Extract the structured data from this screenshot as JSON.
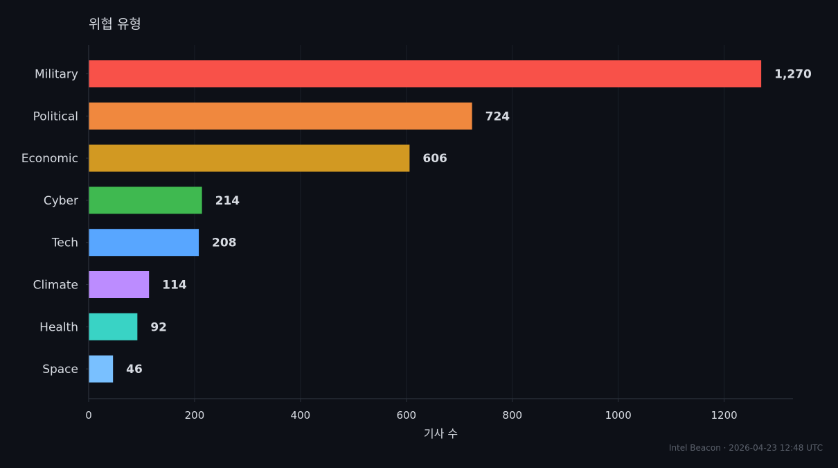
{
  "chart_data": {
    "type": "bar",
    "orientation": "horizontal",
    "title": "위협 유형",
    "xlabel": "기사 수",
    "ylabel": "",
    "xlim": [
      0,
      1330
    ],
    "xticks": [
      0,
      200,
      400,
      600,
      800,
      1000,
      1200
    ],
    "categories": [
      "Military",
      "Political",
      "Economic",
      "Cyber",
      "Tech",
      "Climate",
      "Health",
      "Space"
    ],
    "values": [
      1270,
      724,
      606,
      214,
      208,
      114,
      92,
      46
    ],
    "value_labels": [
      "1,270",
      "724",
      "606",
      "214",
      "208",
      "114",
      "92",
      "46"
    ],
    "colors": [
      "#f85149",
      "#f0883e",
      "#d29922",
      "#3fb950",
      "#58a6ff",
      "#bc8cff",
      "#39d3c5",
      "#79c0ff"
    ],
    "grid": true,
    "legend": "none"
  },
  "footer": {
    "source": "Intel Beacon · 2026-04-23 12:48 UTC"
  },
  "theme": {
    "background": "#0d1017",
    "text": "#d7dbe2",
    "muted_text": "#5b616c",
    "grid": "#1b2029",
    "axis": "#2c323c"
  }
}
